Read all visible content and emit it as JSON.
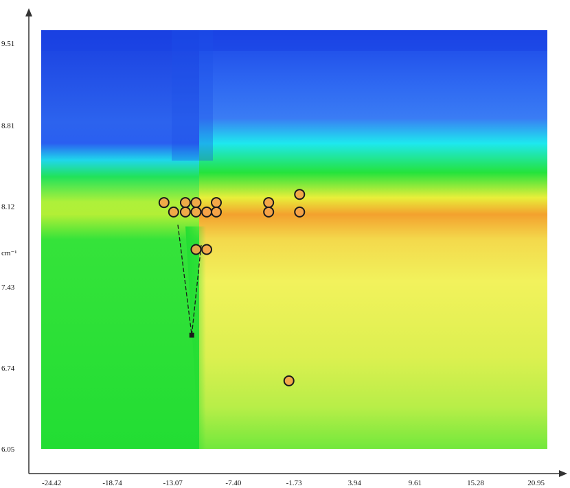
{
  "chart_data": {
    "type": "heatmap",
    "title": "",
    "xlabel": "",
    "ylabel": "cm⁻¹",
    "x_ticks": [
      "-24.42",
      "-18.74",
      "-13.07",
      "-7.40",
      "-1.73",
      "3.94",
      "9.61",
      "15.28",
      "20.95"
    ],
    "y_ticks": [
      "9.51",
      "8.81",
      "8.12",
      "7.43",
      "6.74",
      "6.05"
    ],
    "xlim": [
      -25.4,
      22.0
    ],
    "ylim": [
      6.05,
      9.62
    ],
    "colors": {
      "deep_blue": "#1a3fe0",
      "blue": "#2f6cf2",
      "cyan": "#1fe0ee",
      "green": "#22e236",
      "yellow": "#f1f25c",
      "orange": "#f59a2a",
      "marker_fill": "#f5a24a",
      "axis": "#333333"
    },
    "points": [
      {
        "x": -13.9,
        "y": 8.15
      },
      {
        "x": -13.0,
        "y": 8.07
      },
      {
        "x": -11.9,
        "y": 8.15
      },
      {
        "x": -11.9,
        "y": 8.07
      },
      {
        "x": -10.9,
        "y": 8.15
      },
      {
        "x": -10.9,
        "y": 8.07
      },
      {
        "x": -9.9,
        "y": 8.07
      },
      {
        "x": -9.0,
        "y": 8.15
      },
      {
        "x": -9.0,
        "y": 8.07
      },
      {
        "x": -4.1,
        "y": 8.15
      },
      {
        "x": -4.1,
        "y": 8.07
      },
      {
        "x": -1.2,
        "y": 8.22
      },
      {
        "x": -1.2,
        "y": 8.07
      },
      {
        "x": -10.9,
        "y": 7.75
      },
      {
        "x": -9.9,
        "y": 7.75
      },
      {
        "x": -2.2,
        "y": 6.63
      }
    ],
    "trace_line": [
      {
        "x": -12.6,
        "y": 7.96
      },
      {
        "x": -11.3,
        "y": 7.02
      },
      {
        "x": -10.4,
        "y": 7.8
      }
    ],
    "trace_marker": {
      "x": -11.3,
      "y": 7.02
    }
  }
}
